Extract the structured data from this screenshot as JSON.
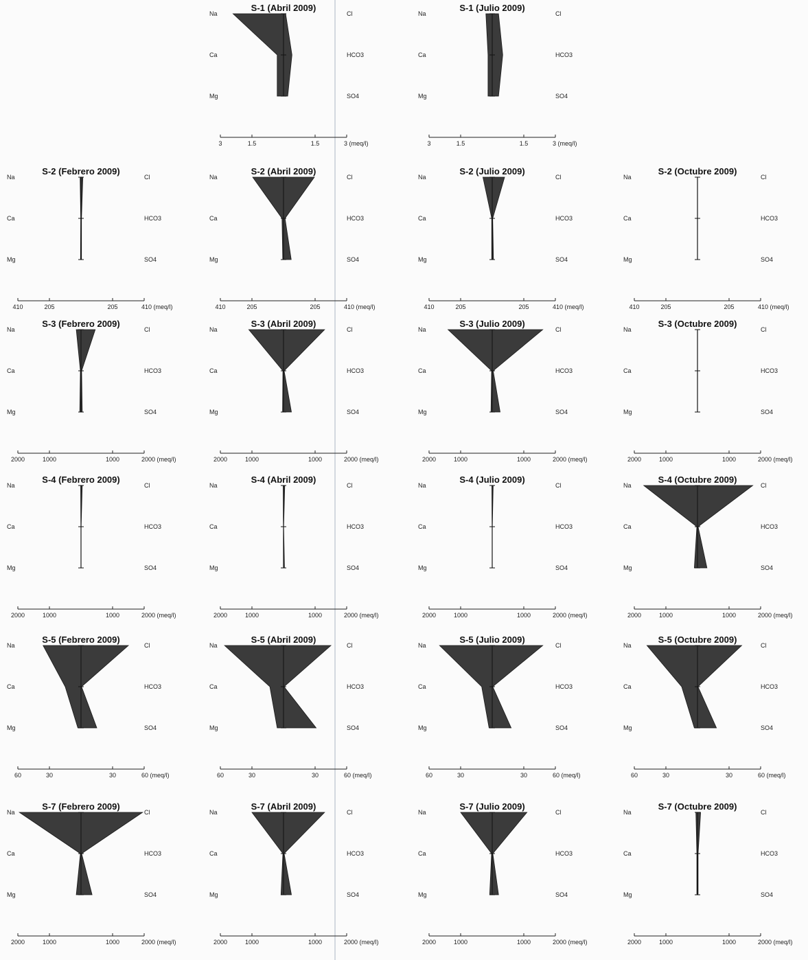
{
  "chart_data": {
    "type": "stiff-diagram",
    "ions": {
      "left": [
        "Na",
        "Ca",
        "Mg"
      ],
      "right": [
        "Cl",
        "HCO3",
        "SO4"
      ]
    },
    "rows": [
      {
        "station": "S-1",
        "scale": {
          "max": 3,
          "tick_labels": [
            "3",
            "1.5",
            "1.5",
            "3 (meq/l)"
          ]
        },
        "panels": [
          null,
          {
            "title": "S-1 (Abril 2009)",
            "cations": [
              2.4,
              0.3,
              0.3
            ],
            "anions": [
              0.1,
              0.4,
              0.2
            ]
          },
          {
            "title": "S-1 (Julio 2009)",
            "cations": [
              0.3,
              0.2,
              0.2
            ],
            "anions": [
              0.3,
              0.5,
              0.3
            ]
          },
          null
        ]
      },
      {
        "station": "S-2",
        "scale": {
          "max": 410,
          "tick_labels": [
            "410",
            "205",
            "205",
            "410 (meq/l)"
          ]
        },
        "panels": [
          {
            "title": "S-2 (Febrero 2009)",
            "cations": [
              6,
              2,
              3
            ],
            "anions": [
              12,
              3,
              3
            ]
          },
          {
            "title": "S-2 (Abril 2009)",
            "cations": [
              200,
              10,
              5
            ],
            "anions": [
              200,
              10,
              50
            ]
          },
          {
            "title": "S-2 (Julio 2009)",
            "cations": [
              60,
              3,
              3
            ],
            "anions": [
              80,
              3,
              8
            ]
          },
          {
            "title": "S-2 (Octubre 2009)",
            "cations": [
              1,
              1,
              1
            ],
            "anions": [
              1,
              1,
              1
            ]
          }
        ]
      },
      {
        "station": "S-3",
        "scale": {
          "max": 2000,
          "tick_labels": [
            "2000",
            "1000",
            "1000",
            "2000 (meq/l)"
          ]
        },
        "panels": [
          {
            "title": "S-3 (Febrero 2009)",
            "cations": [
              150,
              20,
              40
            ],
            "anions": [
              450,
              20,
              40
            ]
          },
          {
            "title": "S-3 (Abril 2009)",
            "cations": [
              1100,
              20,
              30
            ],
            "anions": [
              1300,
              20,
              250
            ]
          },
          {
            "title": "S-3 (Julio 2009)",
            "cations": [
              1400,
              20,
              40
            ],
            "anions": [
              1600,
              30,
              250
            ]
          },
          {
            "title": "S-3 (Octubre 2009)",
            "cations": [
              5,
              5,
              5
            ],
            "anions": [
              5,
              5,
              5
            ]
          }
        ]
      },
      {
        "station": "S-4",
        "scale": {
          "max": 2000,
          "tick_labels": [
            "2000",
            "1000",
            "1000",
            "2000 (meq/l)"
          ]
        },
        "panels": [
          {
            "title": "S-4 (Febrero 2009)",
            "cations": [
              10,
              5,
              5
            ],
            "anions": [
              40,
              5,
              5
            ]
          },
          {
            "title": "S-4 (Abril 2009)",
            "cations": [
              10,
              5,
              5
            ],
            "anions": [
              40,
              5,
              30
            ]
          },
          {
            "title": "S-4 (Julio 2009)",
            "cations": [
              10,
              5,
              5
            ],
            "anions": [
              30,
              5,
              5
            ]
          },
          {
            "title": "S-4 (Octubre 2009)",
            "cations": [
              1700,
              20,
              100
            ],
            "anions": [
              1750,
              20,
              300
            ]
          }
        ]
      },
      {
        "station": "S-5",
        "scale": {
          "max": 60,
          "tick_labels": [
            "60",
            "30",
            "30",
            "60 (meq/l)"
          ]
        },
        "panels": [
          {
            "title": "S-5 (Febrero 2009)",
            "cations": [
              36,
              15,
              3
            ],
            "anions": [
              45,
              0.5,
              15
            ]
          },
          {
            "title": "S-5 (Abril 2009)",
            "cations": [
              56,
              13,
              6
            ],
            "anions": [
              45,
              0.5,
              31
            ]
          },
          {
            "title": "S-5 (Julio 2009)",
            "cations": [
              50,
              10,
              3
            ],
            "anions": [
              48,
              0.5,
              18
            ]
          },
          {
            "title": "S-5 (Octubre 2009)",
            "cations": [
              48,
              15,
              3
            ],
            "anions": [
              42,
              0.5,
              18
            ]
          }
        ]
      },
      {
        "station": "S-7",
        "scale": {
          "max": 2000,
          "tick_labels": [
            "2000",
            "1000",
            "1000",
            "2000 (meq/l)"
          ]
        },
        "panels": [
          {
            "title": "S-7 (Febrero 2009)",
            "cations": [
              1950,
              20,
              150
            ],
            "anions": [
              1950,
              20,
              350
            ]
          },
          {
            "title": "S-7 (Abril 2009)",
            "cations": [
              1000,
              20,
              80
            ],
            "anions": [
              1300,
              20,
              250
            ]
          },
          {
            "title": "S-7 (Julio 2009)",
            "cations": [
              1000,
              20,
              80
            ],
            "anions": [
              1100,
              20,
              200
            ]
          },
          {
            "title": "S-7 (Octubre 2009)",
            "cations": [
              50,
              20,
              20
            ],
            "anions": [
              100,
              20,
              20
            ]
          }
        ]
      }
    ]
  }
}
